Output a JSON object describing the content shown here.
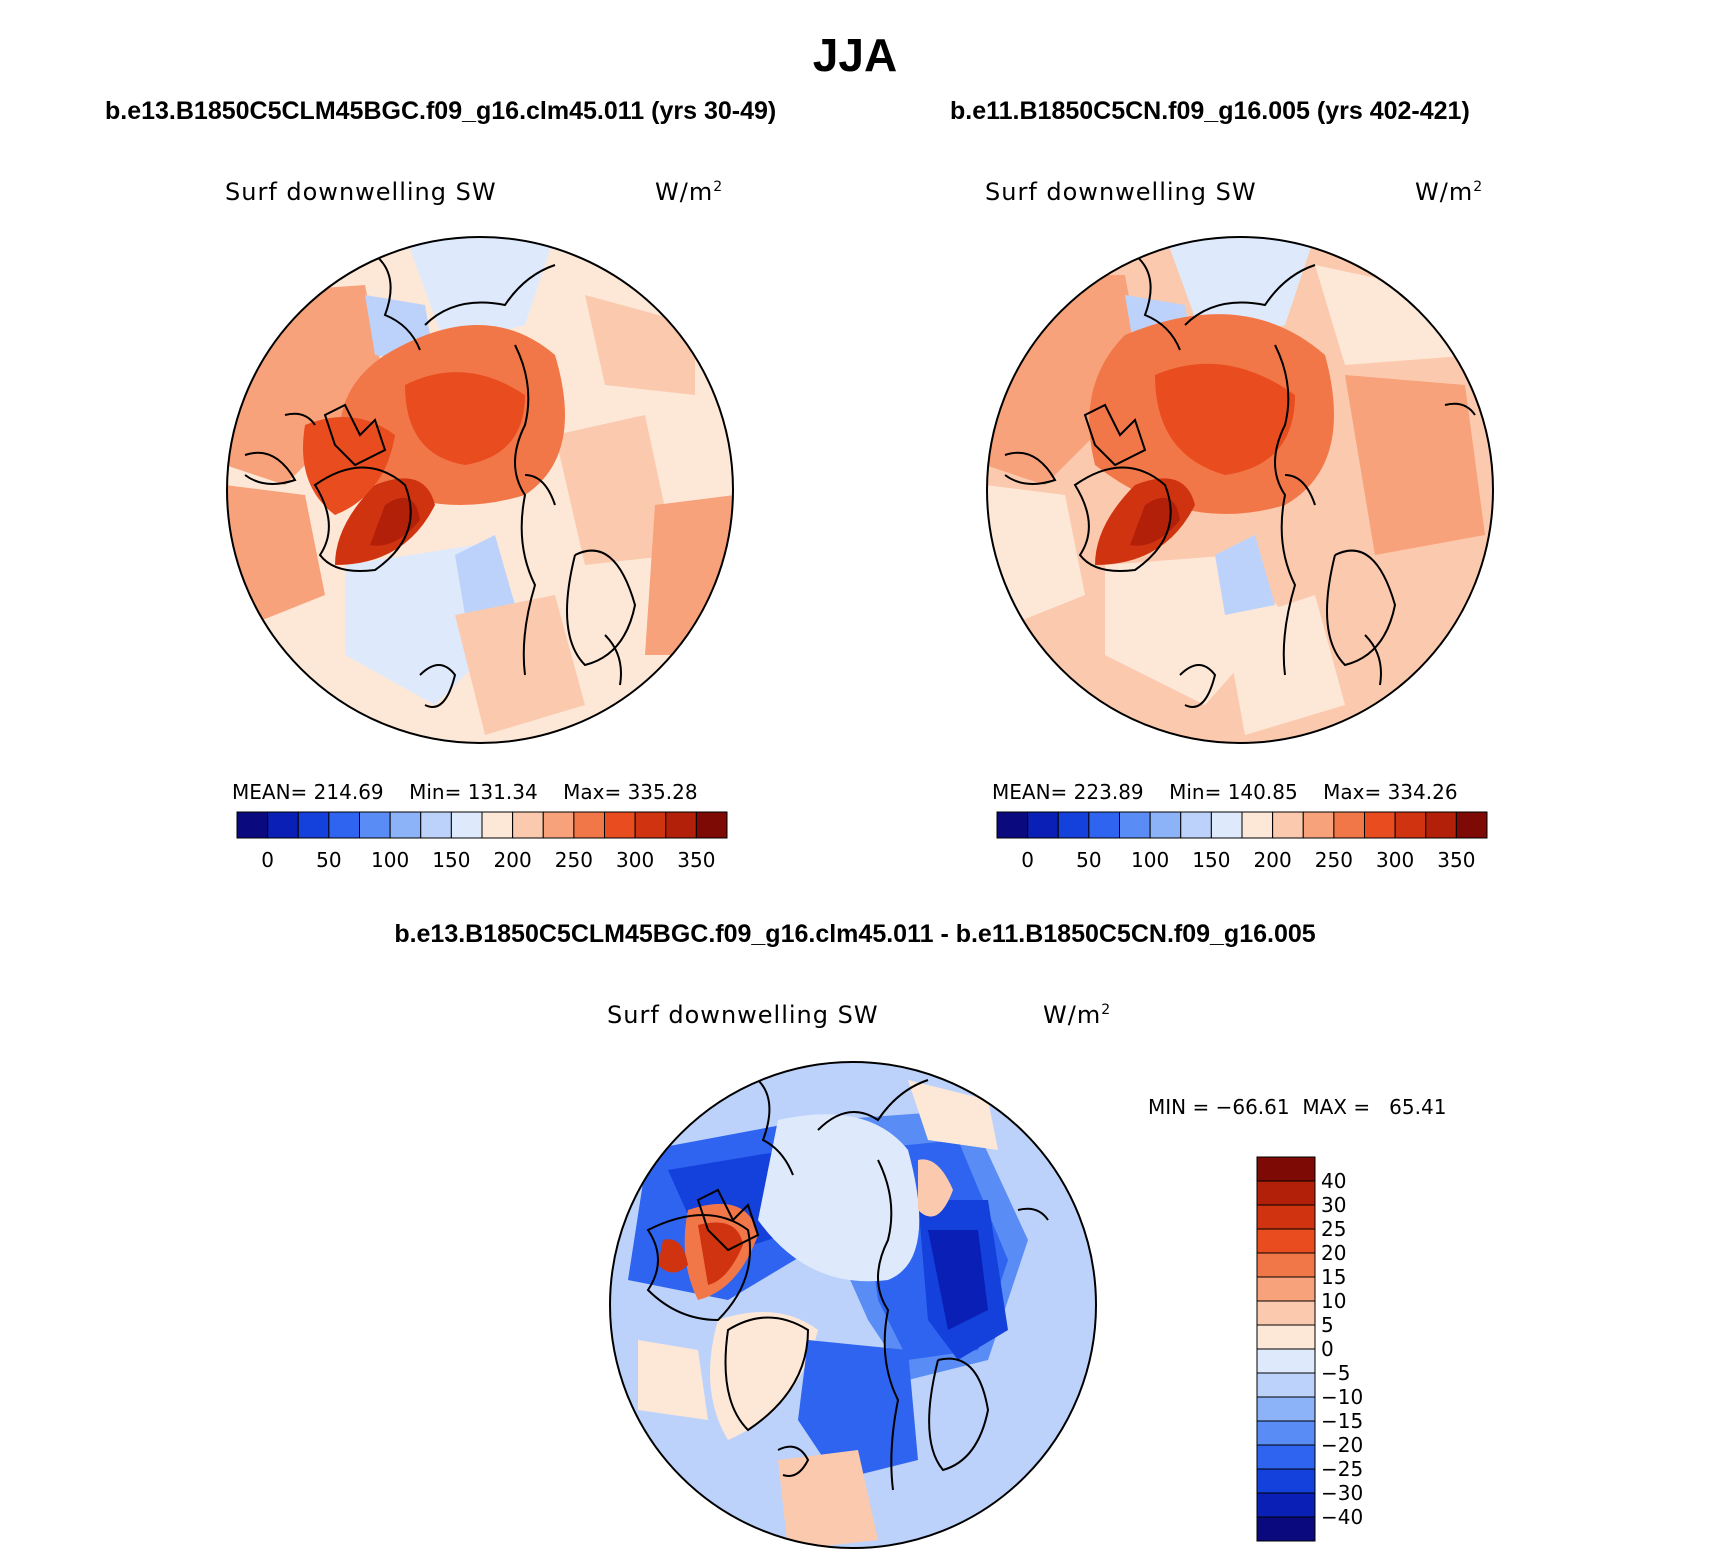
{
  "page": {
    "title": "JJA"
  },
  "palettes": {
    "absolute": [
      "#0a0a7e",
      "#0a1fb5",
      "#1440dc",
      "#2e64f0",
      "#5a8cf5",
      "#8cb2f8",
      "#bcd2fb",
      "#deeafc",
      "#fde8d8",
      "#fbcaae",
      "#f7a27a",
      "#f27748",
      "#e94d1f",
      "#d0330f",
      "#b22009",
      "#7e0a05"
    ],
    "difference": [
      "#0a0a7e",
      "#0a1fb5",
      "#1440dc",
      "#2e64f0",
      "#5a8cf5",
      "#8cb2f8",
      "#bcd2fb",
      "#deeafc",
      "#fde8d8",
      "#fbcaae",
      "#f7a27a",
      "#f27748",
      "#e94d1f",
      "#d0330f",
      "#b22009",
      "#7e0a05"
    ]
  },
  "chart_data": [
    {
      "type": "heatmap",
      "projection": "north-polar-stereographic",
      "case": "b.e13.B1850C5CLM45BGC.f09_g16.clm45.011 (yrs 30-49)",
      "variable": "Surf downwelling SW",
      "units": "W/m",
      "units_exponent": "2",
      "stats": {
        "mean_label": "MEAN=",
        "mean": "214.69",
        "min_label": "Min=",
        "min": "131.34",
        "max_label": "Max=",
        "max": "335.28"
      },
      "colorbar": {
        "orientation": "horizontal",
        "ticks": [
          "0",
          "50",
          "100",
          "150",
          "200",
          "250",
          "300",
          "350"
        ],
        "range": [
          -25,
          375
        ],
        "step": 25
      }
    },
    {
      "type": "heatmap",
      "projection": "north-polar-stereographic",
      "case": "b.e11.B1850C5CN.f09_g16.005 (yrs 402-421)",
      "variable": "Surf downwelling SW",
      "units": "W/m",
      "units_exponent": "2",
      "stats": {
        "mean_label": "MEAN=",
        "mean": "223.89",
        "min_label": "Min=",
        "min": "140.85",
        "max_label": "Max=",
        "max": "334.26"
      },
      "colorbar": {
        "orientation": "horizontal",
        "ticks": [
          "0",
          "50",
          "100",
          "150",
          "200",
          "250",
          "300",
          "350"
        ],
        "range": [
          -25,
          375
        ],
        "step": 25
      }
    },
    {
      "type": "heatmap",
      "projection": "north-polar-stereographic",
      "case": "b.e13.B1850C5CLM45BGC.f09_g16.clm45.011 - b.e11.B1850C5CN.f09_g16.005",
      "variable": "Surf downwelling SW",
      "units": "W/m",
      "units_exponent": "2",
      "stats": {
        "min_label": "MIN =",
        "min": "−66.61",
        "max_label": "MAX =",
        "max": "65.41"
      },
      "colorbar": {
        "orientation": "vertical",
        "levels_top_to_bottom": [
          "40",
          "30",
          "25",
          "20",
          "15",
          "10",
          "5",
          "0",
          "−5",
          "−10",
          "−15",
          "−20",
          "−25",
          "−30",
          "−40"
        ]
      }
    }
  ]
}
